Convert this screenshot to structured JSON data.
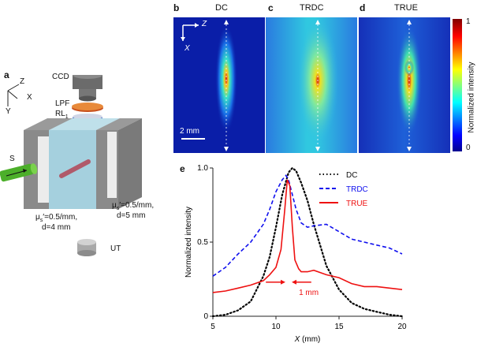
{
  "panels": {
    "a": "a",
    "b": "b",
    "c": "c",
    "d": "d",
    "e": "e"
  },
  "setup": {
    "axes": {
      "z": "Z",
      "x": "X",
      "y": "Y"
    },
    "ccd": "CCD",
    "lpf": "LPF",
    "rl": "RL",
    "rl_sub": "1",
    "source": "S",
    "ut": "UT",
    "left_mu": "μ",
    "left_mu_sub": "s",
    "left_mu_rest": "′=0.5/mm,",
    "left_d": "d=4 mm",
    "right_mu": "μ",
    "right_mu_sub": "s",
    "right_mu_rest": "′=0.5/mm,",
    "right_d": "d=5 mm"
  },
  "images": {
    "titles": [
      "DC",
      "TRDC",
      "TRUE"
    ],
    "axis_z": "Z",
    "axis_x": "X",
    "scalebar": "2 mm",
    "colorbar_label": "Normalized intensity",
    "colorbar_max": "1",
    "colorbar_min": "0"
  },
  "colors": {
    "dc": "#000000",
    "trdc": "#1010ee",
    "true": "#ee1111",
    "image_bg": "#0a1ea8"
  },
  "chart_data": {
    "type": "line",
    "title": "",
    "xlabel": "X (mm)",
    "xlabel_italic": "X",
    "xlabel_unit": " (mm)",
    "ylabel": "Normalized intensity",
    "xlim": [
      5,
      20
    ],
    "ylim": [
      0,
      1.0
    ],
    "xticks": [
      5,
      10,
      15,
      20
    ],
    "yticks": [
      0,
      0.5,
      1.0
    ],
    "ytick_labels": [
      "0",
      "0.5",
      "1.0"
    ],
    "legend": [
      "DC",
      "TRDC",
      "TRUE"
    ],
    "legend_position": "top-right",
    "annotation": "1 mm",
    "series": [
      {
        "name": "DC",
        "style": "dotted",
        "color": "#000000",
        "x": [
          5,
          6,
          7,
          8,
          9,
          9.5,
          10,
          10.5,
          11,
          11.3,
          11.6,
          12,
          12.5,
          13,
          13.5,
          14,
          15,
          16,
          17,
          18,
          19,
          20
        ],
        "y": [
          0.0,
          0.01,
          0.04,
          0.1,
          0.27,
          0.4,
          0.6,
          0.82,
          0.97,
          1.0,
          0.98,
          0.9,
          0.78,
          0.62,
          0.48,
          0.34,
          0.18,
          0.09,
          0.05,
          0.03,
          0.01,
          0.0
        ]
      },
      {
        "name": "TRDC",
        "style": "dashed",
        "color": "#1010ee",
        "x": [
          5,
          6,
          7,
          8,
          9,
          9.5,
          10,
          10.5,
          10.8,
          11,
          11.3,
          11.6,
          12,
          12.5,
          13,
          14,
          15,
          16,
          17,
          18,
          19,
          20
        ],
        "y": [
          0.27,
          0.33,
          0.42,
          0.5,
          0.62,
          0.72,
          0.84,
          0.92,
          0.95,
          0.92,
          0.82,
          0.72,
          0.63,
          0.6,
          0.61,
          0.62,
          0.57,
          0.52,
          0.5,
          0.48,
          0.46,
          0.42
        ]
      },
      {
        "name": "TRUE",
        "style": "solid",
        "color": "#ee1111",
        "x": [
          5,
          6,
          7,
          8,
          9,
          9.5,
          10,
          10.4,
          10.7,
          10.9,
          11.1,
          11.3,
          11.5,
          11.8,
          12,
          12.5,
          13,
          14,
          15,
          16,
          17,
          18,
          19,
          20
        ],
        "y": [
          0.16,
          0.17,
          0.19,
          0.21,
          0.24,
          0.28,
          0.33,
          0.45,
          0.72,
          0.92,
          0.88,
          0.6,
          0.38,
          0.32,
          0.3,
          0.3,
          0.31,
          0.28,
          0.26,
          0.22,
          0.2,
          0.2,
          0.19,
          0.18
        ]
      }
    ]
  }
}
